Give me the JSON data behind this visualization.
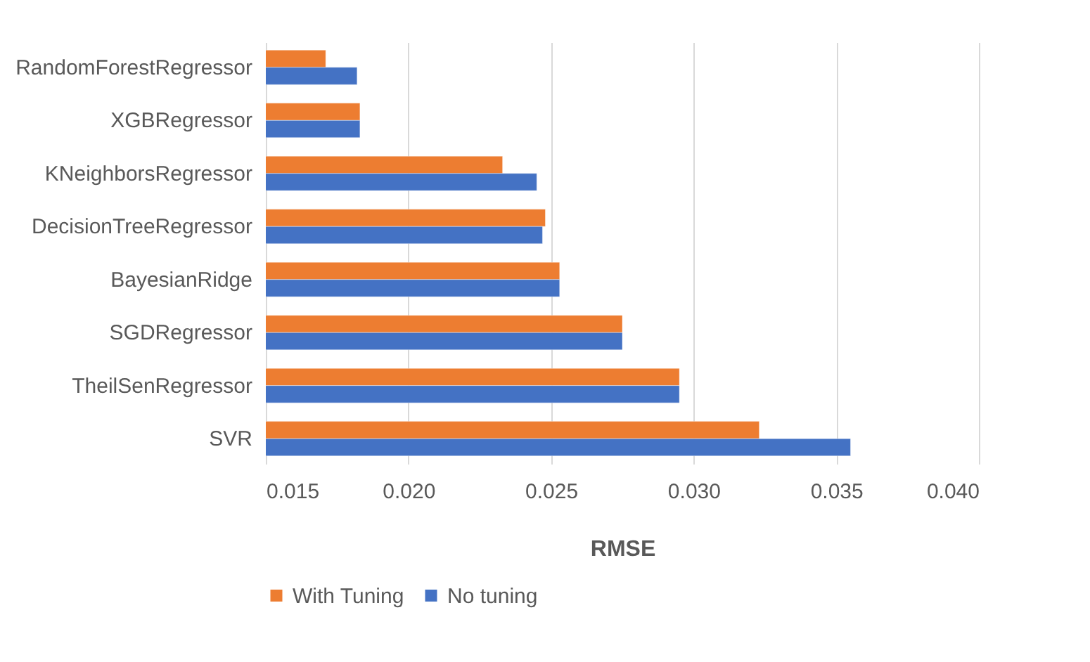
{
  "chart_data": {
    "type": "bar",
    "orientation": "horizontal",
    "xlabel": "RMSE",
    "categories": [
      "RandomForestRegressor",
      "XGBRegressor",
      "KNeighborsRegressor",
      "DecisionTreeRegressor",
      "BayesianRidge",
      "SGDRegressor",
      "TheilSenRegressor",
      "SVR"
    ],
    "series": [
      {
        "name": "With Tuning",
        "color": "#ed7d31",
        "values": [
          0.0171,
          0.0183,
          0.0233,
          0.0248,
          0.0253,
          0.0275,
          0.0295,
          0.0323
        ]
      },
      {
        "name": "No tuning",
        "color": "#4472c4",
        "values": [
          0.0182,
          0.0183,
          0.0245,
          0.0247,
          0.0253,
          0.0275,
          0.0295,
          0.0355
        ]
      }
    ],
    "xlim": [
      0.015,
      0.04
    ],
    "xticks": [
      0.015,
      {
        "value": 0.02,
        "label": "0.020"
      },
      0.025,
      {
        "value": 0.03,
        "label": "0.030"
      },
      0.035,
      {
        "value": 0.04,
        "label": "0.040"
      }
    ],
    "grid": "x",
    "legend": "bottom"
  }
}
